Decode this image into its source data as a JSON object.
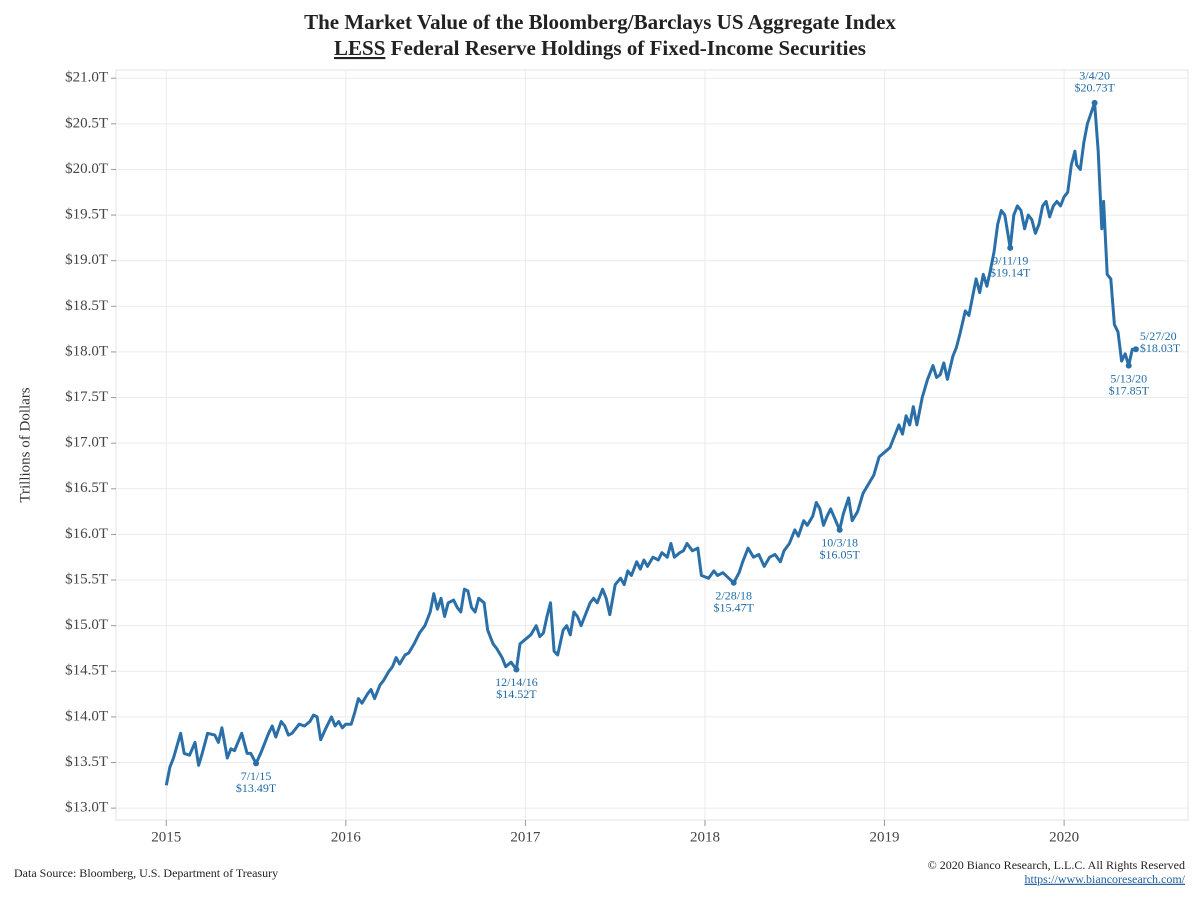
{
  "chart_data": {
    "type": "line",
    "title": "The Market Value of the Bloomberg/Barclays US Aggregate Index",
    "subtitle_emphasis": "LESS",
    "subtitle_rest": "Federal Reserve Holdings of Fixed-Income Securities",
    "y_label": "Trillions of Dollars",
    "source": "Data Source: Bloomberg, U.S. Department of Treasury",
    "copyright": "© 2020 Bianco Research, L.L.C. All Rights Reserved",
    "url": "https://www.biancoresearch.com/",
    "color": "#2a6fa8",
    "grid": true,
    "xlim": [
      2014.72,
      2020.69
    ],
    "xticks": [
      2015,
      2016,
      2017,
      2018,
      2019,
      2020
    ],
    "ylim": [
      12.87,
      21.09
    ],
    "yticks": [
      {
        "value": 13.0,
        "label": "$13.0T"
      },
      {
        "value": 13.5,
        "label": "$13.5T"
      },
      {
        "value": 14.0,
        "label": "$14.0T"
      },
      {
        "value": 14.5,
        "label": "$14.5T"
      },
      {
        "value": 15.0,
        "label": "$15.0T"
      },
      {
        "value": 15.5,
        "label": "$15.5T"
      },
      {
        "value": 16.0,
        "label": "$16.0T"
      },
      {
        "value": 16.5,
        "label": "$16.5T"
      },
      {
        "value": 17.0,
        "label": "$17.0T"
      },
      {
        "value": 17.5,
        "label": "$17.5T"
      },
      {
        "value": 18.0,
        "label": "$18.0T"
      },
      {
        "value": 18.5,
        "label": "$18.5T"
      },
      {
        "value": 19.0,
        "label": "$19.0T"
      },
      {
        "value": 19.5,
        "label": "$19.5T"
      },
      {
        "value": 20.0,
        "label": "$20.0T"
      },
      {
        "value": 20.5,
        "label": "$20.5T"
      },
      {
        "value": 21.0,
        "label": "$21.0T"
      }
    ],
    "x": [
      2015.0,
      2015.02,
      2015.04,
      2015.08,
      2015.1,
      2015.13,
      2015.16,
      2015.18,
      2015.2,
      2015.23,
      2015.27,
      2015.29,
      2015.31,
      2015.34,
      2015.36,
      2015.38,
      2015.42,
      2015.45,
      2015.47,
      2015.5,
      2015.53,
      2015.57,
      2015.59,
      2015.61,
      2015.64,
      2015.66,
      2015.68,
      2015.7,
      2015.74,
      2015.77,
      2015.8,
      2015.82,
      2015.84,
      2015.86,
      2015.89,
      2015.92,
      2015.94,
      2015.96,
      2015.98,
      2016.0,
      2016.03,
      2016.05,
      2016.07,
      2016.09,
      2016.12,
      2016.14,
      2016.16,
      2016.19,
      2016.21,
      2016.24,
      2016.26,
      2016.28,
      2016.3,
      2016.33,
      2016.35,
      2016.38,
      2016.41,
      2016.44,
      2016.47,
      2016.49,
      2016.51,
      2016.53,
      2016.55,
      2016.57,
      2016.6,
      2016.62,
      2016.64,
      2016.66,
      2016.68,
      2016.7,
      2016.72,
      2016.74,
      2016.77,
      2016.79,
      2016.82,
      2016.84,
      2016.87,
      2016.89,
      2016.92,
      2016.95,
      2016.97,
      2017.0,
      2017.03,
      2017.06,
      2017.08,
      2017.1,
      2017.12,
      2017.14,
      2017.16,
      2017.18,
      2017.21,
      2017.23,
      2017.25,
      2017.27,
      2017.29,
      2017.31,
      2017.33,
      2017.36,
      2017.38,
      2017.4,
      2017.43,
      2017.45,
      2017.47,
      2017.5,
      2017.53,
      2017.55,
      2017.57,
      2017.59,
      2017.62,
      2017.64,
      2017.66,
      2017.68,
      2017.71,
      2017.74,
      2017.76,
      2017.79,
      2017.81,
      2017.83,
      2017.86,
      2017.88,
      2017.9,
      2017.93,
      2017.96,
      2017.98,
      2018.02,
      2018.05,
      2018.07,
      2018.1,
      2018.16,
      2018.19,
      2018.21,
      2018.24,
      2018.27,
      2018.3,
      2018.33,
      2018.36,
      2018.39,
      2018.42,
      2018.44,
      2018.47,
      2018.5,
      2018.52,
      2018.55,
      2018.57,
      2018.6,
      2018.62,
      2018.64,
      2018.66,
      2018.68,
      2018.7,
      2018.75,
      2018.77,
      2018.8,
      2018.82,
      2018.85,
      2018.88,
      2018.91,
      2018.94,
      2018.97,
      2019.0,
      2019.03,
      2019.06,
      2019.08,
      2019.1,
      2019.12,
      2019.14,
      2019.16,
      2019.18,
      2019.21,
      2019.24,
      2019.27,
      2019.29,
      2019.31,
      2019.33,
      2019.35,
      2019.38,
      2019.4,
      2019.42,
      2019.45,
      2019.47,
      2019.49,
      2019.51,
      2019.53,
      2019.55,
      2019.57,
      2019.59,
      2019.61,
      2019.63,
      2019.65,
      2019.67,
      2019.7,
      2019.72,
      2019.74,
      2019.76,
      2019.78,
      2019.8,
      2019.82,
      2019.84,
      2019.86,
      2019.88,
      2019.9,
      2019.92,
      2019.94,
      2019.96,
      2019.98,
      2020.0,
      2020.02,
      2020.04,
      2020.06,
      2020.07,
      2020.09,
      2020.11,
      2020.13,
      2020.17,
      2020.19,
      2020.21,
      2020.22,
      2020.24,
      2020.26,
      2020.28,
      2020.3,
      2020.32,
      2020.34,
      2020.36,
      2020.38,
      2020.4
    ],
    "values": [
      13.25,
      13.45,
      13.55,
      13.82,
      13.6,
      13.58,
      13.72,
      13.47,
      13.6,
      13.82,
      13.8,
      13.72,
      13.88,
      13.55,
      13.65,
      13.63,
      13.82,
      13.6,
      13.6,
      13.49,
      13.62,
      13.82,
      13.9,
      13.78,
      13.95,
      13.9,
      13.8,
      13.82,
      13.92,
      13.9,
      13.95,
      14.02,
      14.0,
      13.75,
      13.88,
      14.0,
      13.9,
      13.95,
      13.88,
      13.92,
      13.92,
      14.05,
      14.2,
      14.15,
      14.25,
      14.3,
      14.2,
      14.35,
      14.4,
      14.5,
      14.55,
      14.65,
      14.58,
      14.68,
      14.7,
      14.8,
      14.92,
      15.0,
      15.15,
      15.35,
      15.18,
      15.3,
      15.1,
      15.25,
      15.28,
      15.2,
      15.15,
      15.4,
      15.38,
      15.2,
      15.15,
      15.3,
      15.25,
      14.95,
      14.8,
      14.75,
      14.65,
      14.55,
      14.6,
      14.52,
      14.8,
      14.85,
      14.9,
      15.0,
      14.88,
      14.92,
      15.1,
      15.25,
      14.72,
      14.68,
      14.95,
      15.0,
      14.9,
      15.15,
      15.1,
      15.0,
      15.1,
      15.25,
      15.3,
      15.25,
      15.4,
      15.3,
      15.12,
      15.45,
      15.52,
      15.45,
      15.6,
      15.55,
      15.7,
      15.62,
      15.72,
      15.65,
      15.75,
      15.72,
      15.8,
      15.75,
      15.9,
      15.75,
      15.8,
      15.82,
      15.9,
      15.82,
      15.85,
      15.55,
      15.52,
      15.6,
      15.55,
      15.58,
      15.47,
      15.58,
      15.7,
      15.85,
      15.75,
      15.78,
      15.65,
      15.75,
      15.78,
      15.7,
      15.82,
      15.9,
      16.05,
      15.98,
      16.15,
      16.1,
      16.2,
      16.35,
      16.28,
      16.1,
      16.2,
      16.28,
      16.05,
      16.22,
      16.4,
      16.15,
      16.25,
      16.45,
      16.55,
      16.65,
      16.85,
      16.9,
      16.95,
      17.1,
      17.2,
      17.1,
      17.3,
      17.2,
      17.4,
      17.2,
      17.5,
      17.7,
      17.85,
      17.72,
      17.75,
      17.88,
      17.7,
      17.95,
      18.05,
      18.2,
      18.45,
      18.4,
      18.6,
      18.8,
      18.65,
      18.85,
      18.72,
      18.9,
      19.1,
      19.4,
      19.55,
      19.5,
      19.14,
      19.5,
      19.6,
      19.55,
      19.35,
      19.5,
      19.45,
      19.3,
      19.4,
      19.6,
      19.65,
      19.48,
      19.6,
      19.65,
      19.6,
      19.7,
      19.75,
      20.05,
      20.2,
      20.05,
      20.0,
      20.3,
      20.5,
      20.73,
      20.2,
      19.35,
      19.65,
      18.85,
      18.8,
      18.3,
      18.22,
      17.9,
      17.98,
      17.85,
      18.03,
      18.03
    ],
    "annotations": [
      {
        "x": 2015.5,
        "y": 13.49,
        "date_label": "7/1/15",
        "value_label": "$13.49T",
        "position": "below"
      },
      {
        "x": 2016.95,
        "y": 14.52,
        "date_label": "12/14/16",
        "value_label": "$14.52T",
        "position": "below"
      },
      {
        "x": 2018.16,
        "y": 15.47,
        "date_label": "2/28/18",
        "value_label": "$15.47T",
        "position": "below"
      },
      {
        "x": 2018.75,
        "y": 16.05,
        "date_label": "10/3/18",
        "value_label": "$16.05T",
        "position": "below"
      },
      {
        "x": 2019.7,
        "y": 19.14,
        "date_label": "9/11/19",
        "value_label": "$19.14T",
        "position": "below"
      },
      {
        "x": 2020.17,
        "y": 20.73,
        "date_label": "3/4/20",
        "value_label": "$20.73T",
        "position": "above"
      },
      {
        "x": 2020.36,
        "y": 17.85,
        "date_label": "5/13/20",
        "value_label": "$17.85T",
        "position": "below"
      },
      {
        "x": 2020.4,
        "y": 18.03,
        "date_label": "5/27/20",
        "value_label": "$18.03T",
        "position": "right"
      }
    ]
  }
}
